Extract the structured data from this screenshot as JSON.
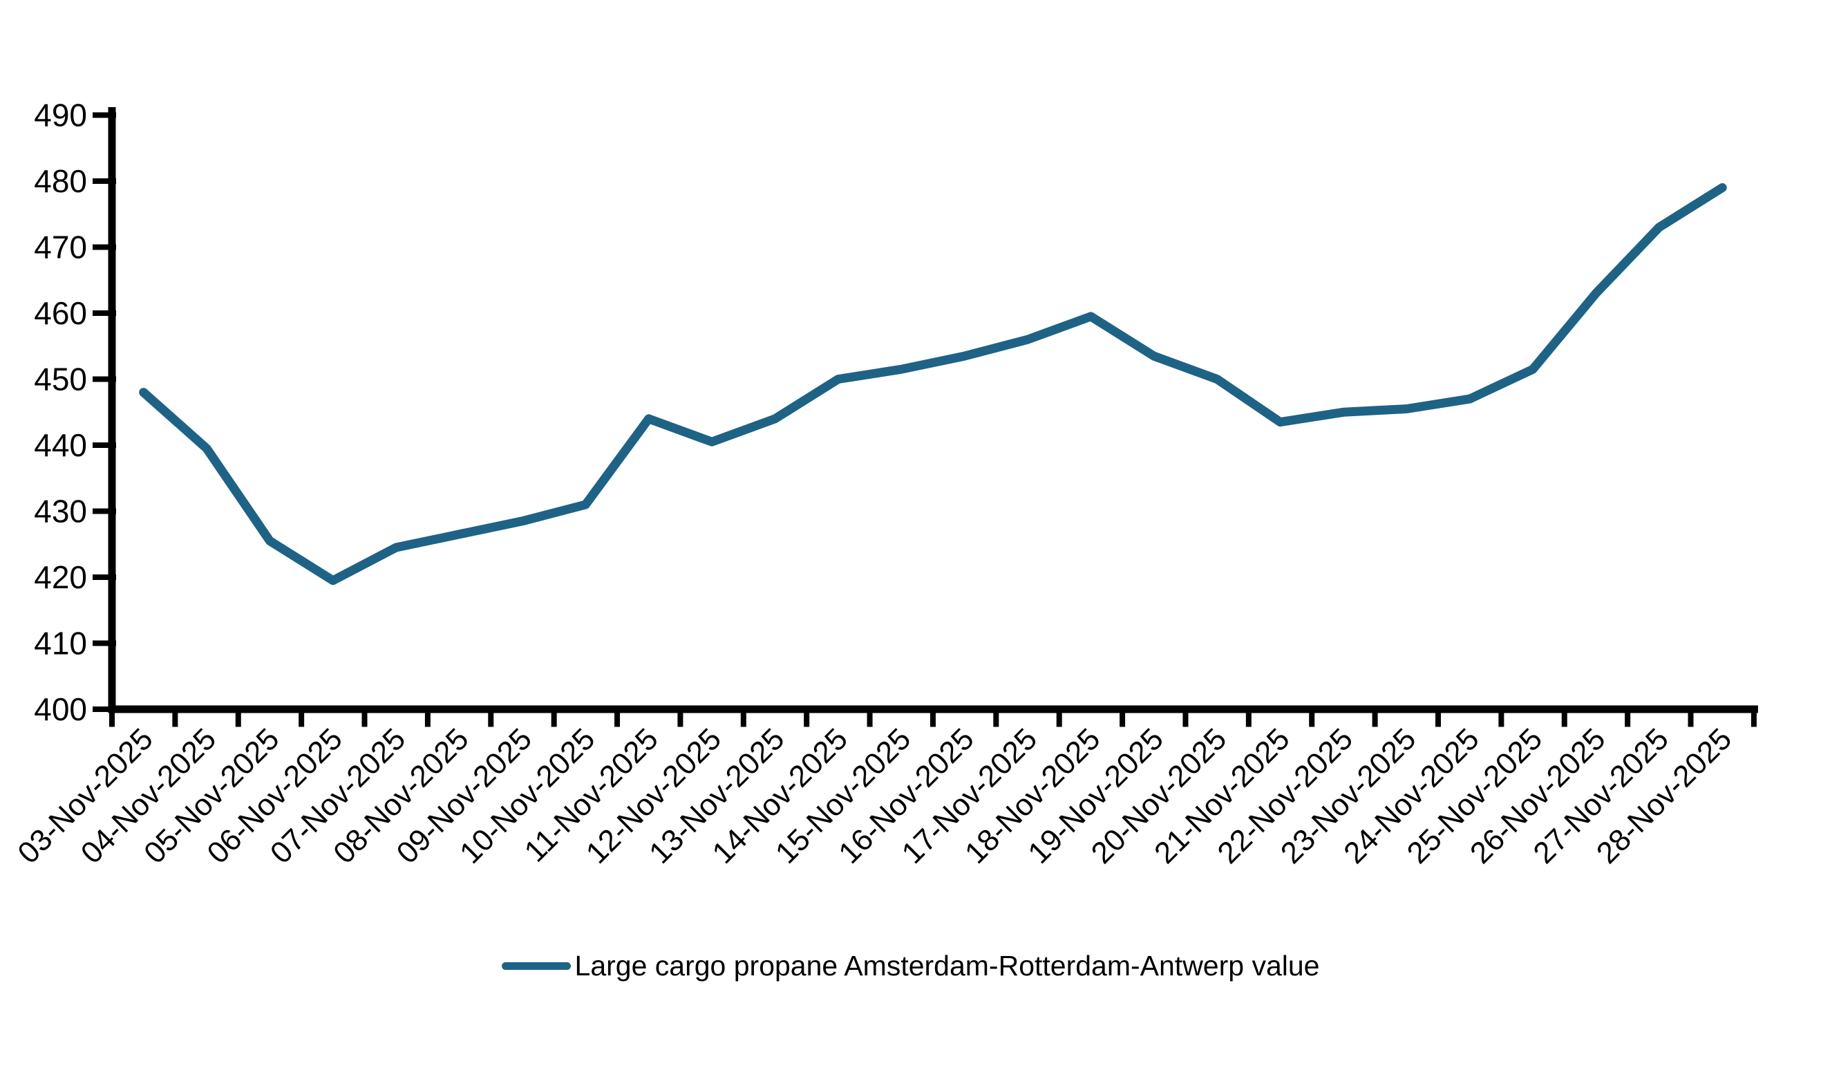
{
  "chart_data": {
    "type": "line",
    "title": "",
    "xlabel": "",
    "ylabel": "",
    "grid": false,
    "legend_position": "bottom-center",
    "ylim": [
      400,
      490
    ],
    "y_ticks": [
      400,
      410,
      420,
      430,
      440,
      450,
      460,
      470,
      480,
      490
    ],
    "categories": [
      "03-Nov-2025",
      "04-Nov-2025",
      "05-Nov-2025",
      "06-Nov-2025",
      "07-Nov-2025",
      "08-Nov-2025",
      "09-Nov-2025",
      "10-Nov-2025",
      "11-Nov-2025",
      "12-Nov-2025",
      "13-Nov-2025",
      "14-Nov-2025",
      "15-Nov-2025",
      "16-Nov-2025",
      "17-Nov-2025",
      "18-Nov-2025",
      "19-Nov-2025",
      "20-Nov-2025",
      "21-Nov-2025",
      "22-Nov-2025",
      "23-Nov-2025",
      "24-Nov-2025",
      "25-Nov-2025",
      "26-Nov-2025",
      "27-Nov-2025",
      "28-Nov-2025"
    ],
    "series": [
      {
        "name": "Large cargo propane Amsterdam-Rotterdam-Antwerp value",
        "color": "#1e6385",
        "values": [
          448,
          439.5,
          425.5,
          419.5,
          424.5,
          426.5,
          428.5,
          431,
          444,
          440.5,
          444,
          450,
          451.5,
          453.5,
          456,
          459.5,
          453.5,
          450,
          443.5,
          445,
          445.5,
          447,
          451.5,
          463,
          473,
          479
        ]
      }
    ]
  },
  "legend": {
    "label": "Large cargo propane Amsterdam-Rotterdam-Antwerp value"
  },
  "colors": {
    "line": "#1e6385",
    "axis": "#000000",
    "text": "#000000",
    "background": "#ffffff"
  }
}
